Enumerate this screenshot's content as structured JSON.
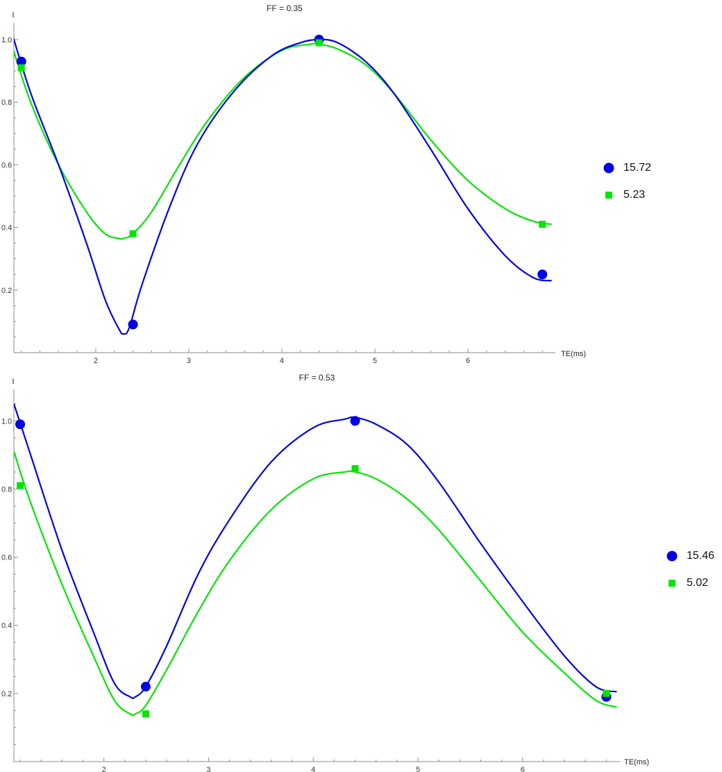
{
  "chart_data": [
    {
      "type": "scatter",
      "title": "FF = 0.35",
      "xlabel": "TE(ms)",
      "ylabel": "I",
      "xlim": [
        1.12,
        6.94
      ],
      "ylim": [
        0,
        1.04
      ],
      "xticks": [
        2,
        3,
        4,
        5,
        6
      ],
      "yticks": [
        0.2,
        0.4,
        0.6,
        0.8,
        1.0
      ],
      "ytick_labels": [
        "0.2",
        "0.4",
        "0.6",
        "0.8",
        "1.0"
      ],
      "legend_position": "right",
      "series": [
        {
          "name": "15.72",
          "marker": "circle",
          "color": "#0000e6",
          "x": [
            1.2,
            2.4,
            4.4,
            6.8
          ],
          "y": [
            0.93,
            0.09,
            1.0,
            0.25
          ],
          "fit_x": [
            1.08,
            1.3,
            1.6,
            1.9,
            2.1,
            2.25,
            2.3,
            2.36,
            2.5,
            2.8,
            3.1,
            3.5,
            3.9,
            4.2,
            4.4,
            4.6,
            4.9,
            5.2,
            5.6,
            6.0,
            6.4,
            6.7,
            6.9
          ],
          "fit_y": [
            1.04,
            0.83,
            0.6,
            0.35,
            0.17,
            0.075,
            0.06,
            0.08,
            0.22,
            0.47,
            0.67,
            0.84,
            0.95,
            0.99,
            1.0,
            0.99,
            0.93,
            0.83,
            0.65,
            0.46,
            0.31,
            0.24,
            0.23
          ]
        },
        {
          "name": "5.23",
          "marker": "square",
          "color": "#00e600",
          "x": [
            1.2,
            2.4,
            4.4,
            6.8
          ],
          "y": [
            0.91,
            0.38,
            0.99,
            0.41
          ],
          "fit_x": [
            1.08,
            1.3,
            1.6,
            1.9,
            2.1,
            2.25,
            2.3,
            2.4,
            2.6,
            2.9,
            3.2,
            3.6,
            4.0,
            4.3,
            4.4,
            4.6,
            4.9,
            5.2,
            5.6,
            6.0,
            6.4,
            6.7,
            6.9
          ],
          "fit_y": [
            1.0,
            0.8,
            0.6,
            0.45,
            0.38,
            0.365,
            0.365,
            0.38,
            0.45,
            0.6,
            0.74,
            0.88,
            0.965,
            0.985,
            0.985,
            0.97,
            0.92,
            0.83,
            0.68,
            0.55,
            0.46,
            0.42,
            0.41
          ]
        }
      ]
    },
    {
      "type": "scatter",
      "title": "FF = 0.53",
      "xlabel": "TE(ms)",
      "ylabel": "I",
      "xlim": [
        1.14,
        6.93
      ],
      "ylim": [
        0,
        1.08
      ],
      "xticks": [
        2,
        3,
        4,
        5,
        6
      ],
      "yticks": [
        0.2,
        0.4,
        0.6,
        0.8,
        1.0
      ],
      "ytick_labels": [
        "0.2",
        "0.4",
        "0.6",
        "0.8",
        "1.0"
      ],
      "legend_position": "right",
      "series": [
        {
          "name": "15.46",
          "marker": "circle",
          "color": "#0000e6",
          "x": [
            1.2,
            2.4,
            4.4,
            6.8
          ],
          "y": [
            0.99,
            0.22,
            1.0,
            0.19
          ],
          "fit_x": [
            1.14,
            1.3,
            1.6,
            1.9,
            2.1,
            2.25,
            2.3,
            2.4,
            2.6,
            2.9,
            3.2,
            3.6,
            4.0,
            4.3,
            4.4,
            4.6,
            4.9,
            5.2,
            5.6,
            6.0,
            6.4,
            6.7,
            6.9
          ],
          "fit_y": [
            1.05,
            0.9,
            0.62,
            0.38,
            0.23,
            0.19,
            0.19,
            0.22,
            0.34,
            0.55,
            0.71,
            0.88,
            0.98,
            1.005,
            1.01,
            0.99,
            0.93,
            0.82,
            0.64,
            0.47,
            0.31,
            0.22,
            0.205
          ]
        },
        {
          "name": "5.02",
          "marker": "square",
          "color": "#00e600",
          "x": [
            1.2,
            2.4,
            4.4,
            6.8
          ],
          "y": [
            0.81,
            0.14,
            0.86,
            0.2
          ],
          "fit_x": [
            1.14,
            1.3,
            1.6,
            1.9,
            2.1,
            2.25,
            2.3,
            2.4,
            2.6,
            2.9,
            3.2,
            3.6,
            4.0,
            4.3,
            4.4,
            4.6,
            4.9,
            5.2,
            5.6,
            6.0,
            6.4,
            6.7,
            6.9
          ],
          "fit_y": [
            0.91,
            0.76,
            0.52,
            0.31,
            0.18,
            0.14,
            0.14,
            0.165,
            0.27,
            0.44,
            0.59,
            0.74,
            0.83,
            0.85,
            0.85,
            0.83,
            0.77,
            0.68,
            0.53,
            0.38,
            0.26,
            0.18,
            0.16
          ]
        }
      ]
    }
  ]
}
